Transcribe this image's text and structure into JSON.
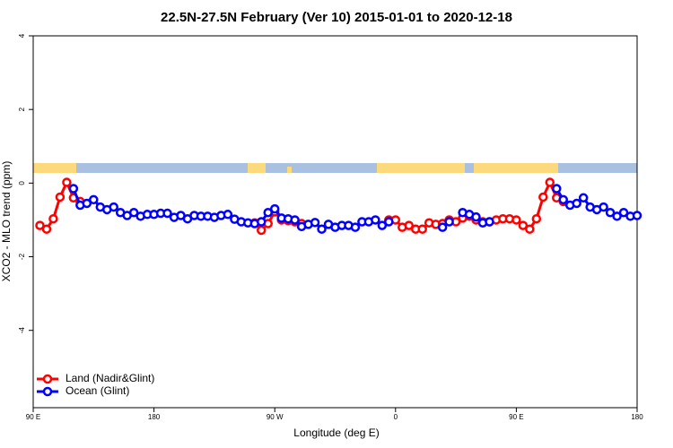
{
  "chart_data": {
    "type": "line",
    "title": "22.5N-27.5N February (Ver 10)   2015-01-01 to 2020-12-18",
    "xlabel": "Longitude (deg E)",
    "ylabel": "XCO2 - MLO trend (ppm)",
    "x": [
      95,
      100,
      105,
      110,
      115,
      120,
      125,
      130,
      135,
      140,
      145,
      150,
      155,
      160,
      165,
      170,
      175,
      180,
      185,
      190,
      195,
      200,
      205,
      210,
      215,
      220,
      225,
      230,
      235,
      240,
      245,
      250,
      255,
      260,
      265,
      270,
      275,
      280,
      285,
      290,
      295,
      300,
      305,
      310,
      315,
      320,
      325,
      330,
      335,
      340,
      345,
      350,
      355,
      360,
      365,
      370,
      375,
      380,
      385,
      390,
      395,
      400,
      405,
      410,
      415,
      420,
      425,
      430,
      435,
      440,
      445,
      450,
      455,
      460,
      465,
      470,
      475,
      480,
      485,
      490,
      495,
      500,
      505,
      510,
      515,
      520,
      525,
      530,
      535,
      540
    ],
    "series": [
      {
        "name": "Land (Nadir&Glint)",
        "color": "#ff0000",
        "values": [
          -1.15,
          -1.25,
          -0.97,
          -0.38,
          0.02,
          -0.4,
          -0.5,
          null,
          null,
          null,
          null,
          null,
          null,
          null,
          null,
          null,
          null,
          null,
          null,
          null,
          null,
          null,
          null,
          null,
          null,
          null,
          null,
          null,
          null,
          null,
          null,
          null,
          -1.08,
          -1.28,
          -1.1,
          -0.78,
          -1.0,
          -1.02,
          -1.05,
          -1.1,
          null,
          null,
          null,
          null,
          null,
          null,
          null,
          null,
          null,
          null,
          null,
          null,
          -1.0,
          -1.0,
          -1.2,
          -1.15,
          -1.25,
          -1.25,
          -1.08,
          -1.12,
          -1.1,
          -1.0,
          -1.05,
          -0.95,
          -0.9,
          -1.0,
          -1.05,
          -1.05,
          -1.0,
          -0.97,
          -0.97,
          -1.0,
          -1.15,
          -1.25,
          -0.97,
          -0.38,
          0.02,
          -0.4,
          -0.5,
          null,
          null,
          null,
          null,
          null,
          null,
          null,
          null,
          null,
          null,
          null
        ]
      },
      {
        "name": "Ocean (Glint)",
        "color": "#0000ff",
        "values": [
          null,
          null,
          null,
          null,
          null,
          -0.15,
          -0.6,
          -0.55,
          -0.45,
          -0.65,
          -0.72,
          -0.65,
          -0.8,
          -0.88,
          -0.8,
          -0.9,
          -0.85,
          -0.85,
          -0.82,
          -0.82,
          -0.93,
          -0.88,
          -0.97,
          -0.88,
          -0.9,
          -0.9,
          -0.93,
          -0.88,
          -0.85,
          -0.98,
          -1.05,
          -1.08,
          -1.1,
          -1.05,
          -0.8,
          -0.7,
          -0.95,
          -0.97,
          -1.0,
          -1.18,
          -1.12,
          -1.07,
          -1.25,
          -1.12,
          -1.2,
          -1.15,
          -1.15,
          -1.2,
          -1.05,
          -1.05,
          -1.0,
          -1.15,
          -1.05,
          null,
          null,
          null,
          null,
          null,
          null,
          null,
          -1.2,
          -1.05,
          null,
          -0.8,
          -0.85,
          -0.92,
          -1.08,
          -1.05,
          null,
          null,
          null,
          null,
          null,
          null,
          null,
          null,
          null,
          -0.15,
          -0.45,
          -0.6,
          -0.55,
          -0.4,
          -0.65,
          -0.72,
          -0.65,
          -0.8,
          -0.9,
          -0.8,
          -0.9,
          -0.88
        ]
      }
    ],
    "xlim": [
      90,
      540
    ],
    "xticks": [
      {
        "value": 90,
        "label": "90 E"
      },
      180,
      {
        "value": 270,
        "label": "90 W"
      },
      {
        "value": 360,
        "label": "0"
      },
      {
        "value": 450,
        "label": "90 E"
      },
      {
        "value": 540,
        "label": "180"
      }
    ],
    "ylim": [
      -6.1,
      4
    ],
    "yticks": [
      -4,
      -2,
      0,
      2,
      4
    ],
    "legend": "bottom-left"
  }
}
